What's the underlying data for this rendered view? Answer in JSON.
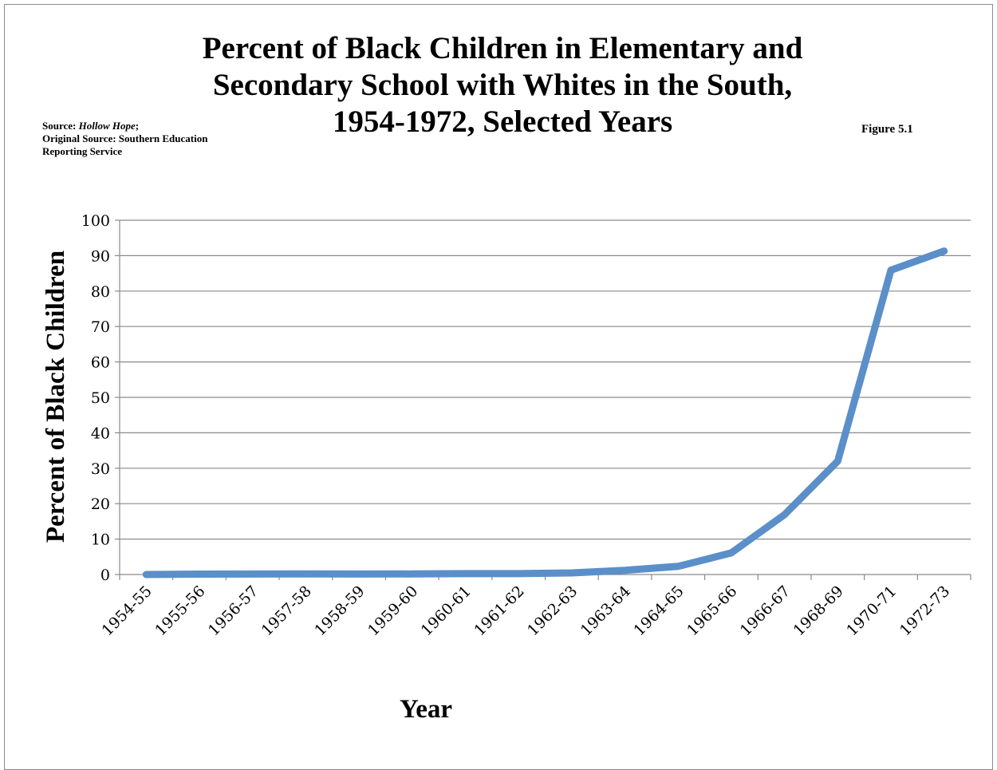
{
  "header": {
    "title_line1": "Percent of Black Children in Elementary and",
    "title_line2": "Secondary School with Whites in the South,",
    "title_line3": "1954-1972, Selected Years",
    "source_label": "Source: ",
    "source_book": "Hollow Hope",
    "source_sep": ";",
    "source_original": "Original Source: Southern Education Reporting Service",
    "figure_label": "Figure 5.1"
  },
  "chart_data": {
    "type": "line",
    "title": "Percent of Black Children in Elementary and Secondary School with Whites in the South, 1954-1972, Selected Years",
    "xlabel": "Year",
    "ylabel": "Percent of Black Children",
    "ylim": [
      0,
      100
    ],
    "yticks": [
      0,
      10,
      20,
      30,
      40,
      50,
      60,
      70,
      80,
      90,
      100
    ],
    "grid": true,
    "legend": "none",
    "categories": [
      "1954-55",
      "1955-56",
      "1956-57",
      "1957-58",
      "1958-59",
      "1959-60",
      "1960-61",
      "1961-62",
      "1962-63",
      "1963-64",
      "1964-65",
      "1965-66",
      "1966-67",
      "1968-69",
      "1970-71",
      "1972-73"
    ],
    "series": [
      {
        "color": "#5B8FC9",
        "values": [
          0.001,
          0.12,
          0.14,
          0.15,
          0.13,
          0.16,
          0.24,
          0.24,
          0.45,
          1.2,
          2.3,
          6.1,
          16.9,
          32.0,
          85.9,
          91.3
        ]
      }
    ]
  }
}
